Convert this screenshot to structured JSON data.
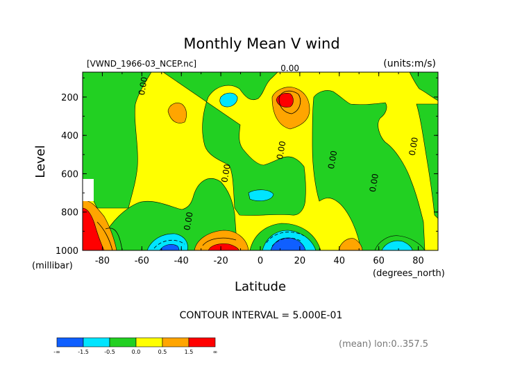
{
  "chart_data": {
    "type": "heatmap",
    "title": "Monthly Mean V wind",
    "file_label": "[VWND_1966-03_NCEP.nc]",
    "units_label": "(units:m/s)",
    "xlabel": "Latitude",
    "x_unit_label": "(degrees_north)",
    "ylabel": "Level",
    "y_unit_label": "(millibar)",
    "xlim": [
      -90,
      90
    ],
    "ylim": [
      1000,
      70
    ],
    "x_ticks": [
      -80,
      -60,
      -40,
      -20,
      0,
      20,
      40,
      60,
      80
    ],
    "y_ticks": [
      200,
      400,
      600,
      800,
      1000
    ],
    "contour_interval_text": "CONTOUR INTERVAL = 5.000E-01",
    "contour_labels": [
      {
        "text": "0.00",
        "lat": 15,
        "lev": 65
      },
      {
        "text": "0.00",
        "lat": -58,
        "lev": 145
      },
      {
        "text": "0.00",
        "lat": 12,
        "lev": 480
      },
      {
        "text": "0.00",
        "lat": -16,
        "lev": 600
      },
      {
        "text": "0.00",
        "lat": 38,
        "lev": 530
      },
      {
        "text": "0.00",
        "lat": 59,
        "lev": 650
      },
      {
        "text": "0.00",
        "lat": 79,
        "lev": 460
      },
      {
        "text": "0.00",
        "lat": -35,
        "lev": 850
      }
    ],
    "colorbar": {
      "boundaries": [
        "-∞",
        "-1.5",
        "-0.5",
        "0.0",
        "0.5",
        "1.5",
        "∞"
      ],
      "colors": [
        "#0f5fff",
        "#00e5ff",
        "#22d022",
        "#ffff00",
        "#ffa500",
        "#ff0000"
      ]
    },
    "palette": {
      "very_negative": "#0f5fff",
      "negative": "#00e5ff",
      "slightly_negative": "#22d022",
      "slightly_positive": "#ffff00",
      "positive": "#ffa500",
      "very_positive": "#ff0000"
    },
    "mean_note": "(mean) lon:0..357.5"
  }
}
